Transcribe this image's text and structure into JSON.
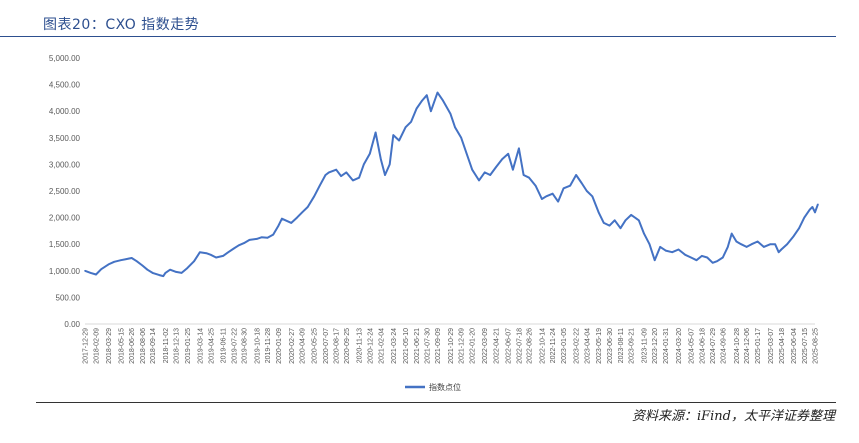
{
  "title": "图表20：CXO 指数走势",
  "source": "资料来源：iFind，太平洋证券整理",
  "chart_data": {
    "type": "line",
    "title": "",
    "xlabel": "",
    "ylabel": "",
    "ylim": [
      0,
      5000
    ],
    "yticks": [
      "5,000.00",
      "4,500.00",
      "4,000.00",
      "3,500.00",
      "3,000.00",
      "2,500.00",
      "2,000.00",
      "1,500.00",
      "1,000.00",
      "500.00",
      "0.00"
    ],
    "ytick_values": [
      5000,
      4500,
      4000,
      3500,
      3000,
      2500,
      2000,
      1500,
      1000,
      500,
      0
    ],
    "xticks": [
      "2017-12-29",
      "2018-02-09",
      "2018-03-29",
      "2018-05-15",
      "2018-06-26",
      "2018-08-06",
      "2018-09-14",
      "2018-11-02",
      "2018-12-13",
      "2019-01-25",
      "2019-03-14",
      "2019-04-25",
      "2019-06-11",
      "2019-07-22",
      "2019-08-30",
      "2019-10-18",
      "2019-11-28",
      "2020-01-09",
      "2020-02-27",
      "2020-04-09",
      "2020-05-25",
      "2020-07-07",
      "2020-08-17",
      "2020-09-25",
      "2020-11-13",
      "2020-12-24",
      "2021-02-04",
      "2021-03-24",
      "2021-05-10",
      "2021-06-21",
      "2021-07-30",
      "2021-09-09",
      "2021-10-29",
      "2021-12-09",
      "2022-01-20",
      "2022-03-09",
      "2022-04-21",
      "2022-06-07",
      "2022-07-18",
      "2022-08-26",
      "2022-10-14",
      "2022-11-24",
      "2023-01-05",
      "2023-02-22",
      "2023-04-04",
      "2023-05-19",
      "2023-06-30",
      "2023-08-11",
      "2023-09-21",
      "2023-11-09",
      "2023-12-20",
      "2024-01-31",
      "2024-03-20",
      "2024-05-07",
      "2024-06-18",
      "2024-07-29",
      "2024-09-06",
      "2024-10-28",
      "2024-12-06",
      "2025-01-17",
      "2025-03-07",
      "2025-04-18",
      "2025-06-04",
      "2025-07-15",
      "2025-08-25"
    ],
    "legend": "bottom",
    "grid": false,
    "series": [
      {
        "name": "指数点位",
        "color": "#4472c4",
        "x": [
          "2017-12-29",
          "2018-01-20",
          "2018-02-09",
          "2018-03-01",
          "2018-03-29",
          "2018-04-20",
          "2018-05-15",
          "2018-06-05",
          "2018-06-26",
          "2018-07-15",
          "2018-08-06",
          "2018-08-25",
          "2018-09-14",
          "2018-10-10",
          "2018-10-25",
          "2018-11-02",
          "2018-11-20",
          "2018-12-13",
          "2019-01-03",
          "2019-01-25",
          "2019-02-20",
          "2019-03-14",
          "2019-04-08",
          "2019-04-25",
          "2019-05-15",
          "2019-06-11",
          "2019-07-01",
          "2019-07-22",
          "2019-08-10",
          "2019-08-30",
          "2019-09-20",
          "2019-10-18",
          "2019-11-05",
          "2019-11-28",
          "2019-12-20",
          "2020-01-09",
          "2020-01-22",
          "2020-02-27",
          "2020-03-20",
          "2020-04-09",
          "2020-04-30",
          "2020-05-25",
          "2020-06-15",
          "2020-07-07",
          "2020-07-20",
          "2020-08-17",
          "2020-09-05",
          "2020-09-25",
          "2020-10-20",
          "2020-11-13",
          "2020-12-01",
          "2020-12-24",
          "2021-01-15",
          "2021-02-04",
          "2021-02-20",
          "2021-03-10",
          "2021-03-24",
          "2021-04-15",
          "2021-05-10",
          "2021-05-31",
          "2021-06-21",
          "2021-07-12",
          "2021-07-30",
          "2021-08-15",
          "2021-09-09",
          "2021-09-30",
          "2021-10-29",
          "2021-11-15",
          "2021-12-09",
          "2021-12-30",
          "2022-01-20",
          "2022-02-15",
          "2022-03-09",
          "2022-03-30",
          "2022-04-21",
          "2022-05-15",
          "2022-06-07",
          "2022-06-25",
          "2022-07-18",
          "2022-08-05",
          "2022-08-26",
          "2022-09-20",
          "2022-10-14",
          "2022-10-31",
          "2022-11-24",
          "2022-12-15",
          "2023-01-05",
          "2023-01-30",
          "2023-02-22",
          "2023-03-15",
          "2023-04-04",
          "2023-04-25",
          "2023-05-19",
          "2023-06-08",
          "2023-06-30",
          "2023-07-20",
          "2023-08-11",
          "2023-08-30",
          "2023-09-21",
          "2023-10-20",
          "2023-11-09",
          "2023-11-30",
          "2023-12-20",
          "2024-01-10",
          "2024-01-31",
          "2024-02-25",
          "2024-03-20",
          "2024-04-15",
          "2024-05-07",
          "2024-05-28",
          "2024-06-18",
          "2024-07-08",
          "2024-07-29",
          "2024-08-15",
          "2024-09-06",
          "2024-09-25",
          "2024-10-10",
          "2024-10-28",
          "2024-11-15",
          "2024-12-06",
          "2024-12-25",
          "2025-01-17",
          "2025-02-10",
          "2025-03-07",
          "2025-03-25",
          "2025-04-08",
          "2025-04-18",
          "2025-05-10",
          "2025-06-04",
          "2025-06-25",
          "2025-07-15",
          "2025-08-05",
          "2025-08-15",
          "2025-08-25",
          "2025-09-05"
        ],
        "values": [
          1000,
          960,
          930,
          1030,
          1120,
          1170,
          1200,
          1220,
          1240,
          1180,
          1100,
          1020,
          960,
          920,
          900,
          960,
          1020,
          980,
          960,
          1050,
          1180,
          1350,
          1330,
          1300,
          1250,
          1280,
          1350,
          1420,
          1480,
          1520,
          1580,
          1600,
          1630,
          1620,
          1680,
          1850,
          1980,
          1900,
          2000,
          2100,
          2200,
          2400,
          2600,
          2800,
          2850,
          2900,
          2780,
          2850,
          2700,
          2750,
          3000,
          3200,
          3600,
          3100,
          2800,
          3000,
          3550,
          3450,
          3700,
          3800,
          4050,
          4200,
          4300,
          4000,
          4350,
          4200,
          3950,
          3700,
          3500,
          3200,
          2900,
          2700,
          2850,
          2800,
          2950,
          3100,
          3200,
          2900,
          3300,
          2800,
          2750,
          2600,
          2350,
          2400,
          2450,
          2300,
          2550,
          2600,
          2800,
          2650,
          2500,
          2400,
          2100,
          1900,
          1850,
          1950,
          1800,
          1950,
          2050,
          1950,
          1700,
          1500,
          1200,
          1450,
          1380,
          1350,
          1400,
          1300,
          1250,
          1200,
          1280,
          1250,
          1150,
          1180,
          1250,
          1450,
          1700,
          1550,
          1500,
          1450,
          1500,
          1550,
          1450,
          1500,
          1500,
          1350,
          1400,
          1500,
          1650,
          1800,
          2000,
          2150,
          2200,
          2100,
          2250
        ]
      }
    ]
  }
}
